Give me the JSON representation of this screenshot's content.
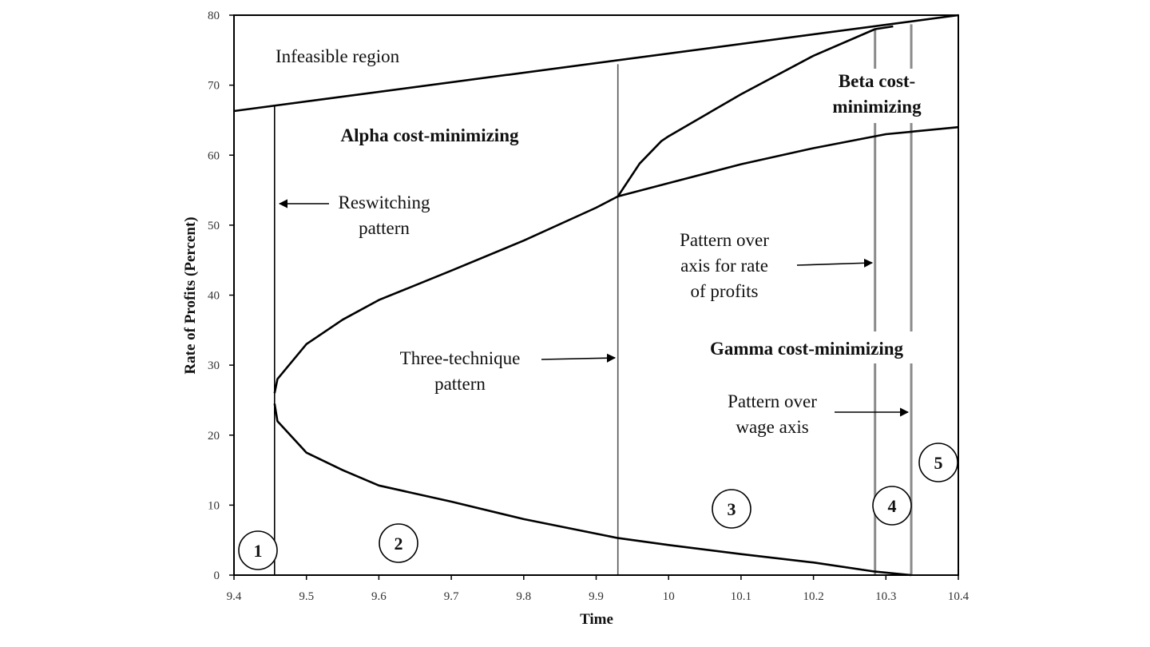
{
  "chart_data": {
    "type": "line",
    "xlabel": "Time",
    "ylabel": "Rate of Profits (Percent)",
    "xlim": [
      9.4,
      10.4
    ],
    "ylim": [
      0,
      80
    ],
    "x_ticks": [
      "9.4",
      "9.5",
      "9.6",
      "9.7",
      "9.8",
      "9.9",
      "10",
      "10.1",
      "10.2",
      "10.3",
      "10.4"
    ],
    "y_ticks": [
      "0",
      "10",
      "20",
      "30",
      "40",
      "50",
      "60",
      "70",
      "80"
    ],
    "grid": false,
    "legend": "none",
    "series": [
      {
        "points": [
          [
            9.4,
            66.3
          ],
          [
            10.4,
            80.0
          ]
        ]
      },
      {
        "points": [
          [
            9.456,
            26.0
          ],
          [
            9.46,
            28.0
          ],
          [
            9.5,
            33.0
          ],
          [
            9.55,
            36.5
          ],
          [
            9.6,
            39.3
          ],
          [
            9.7,
            43.5
          ],
          [
            9.8,
            47.8
          ],
          [
            9.9,
            52.5
          ],
          [
            9.93,
            54.1
          ],
          [
            10.0,
            56.0
          ],
          [
            10.1,
            58.7
          ],
          [
            10.2,
            61.0
          ],
          [
            10.3,
            63.0
          ],
          [
            10.4,
            64.0
          ]
        ]
      },
      {
        "points": [
          [
            9.456,
            24.5
          ],
          [
            9.46,
            22.0
          ],
          [
            9.5,
            17.5
          ],
          [
            9.55,
            15.0
          ],
          [
            9.6,
            12.8
          ],
          [
            9.7,
            10.5
          ],
          [
            9.8,
            8.0
          ],
          [
            9.93,
            5.3
          ],
          [
            10.0,
            4.3
          ],
          [
            10.1,
            3.0
          ],
          [
            10.2,
            1.8
          ],
          [
            10.285,
            0.5
          ],
          [
            10.335,
            0.0
          ]
        ]
      },
      {
        "points": [
          [
            9.93,
            54.1
          ],
          [
            9.96,
            58.8
          ],
          [
            9.99,
            62.0
          ],
          [
            10.0,
            62.7
          ],
          [
            10.1,
            68.7
          ],
          [
            10.2,
            74.2
          ],
          [
            10.285,
            78.0
          ],
          [
            10.31,
            78.4
          ]
        ]
      }
    ],
    "verticals": [
      {
        "x": 9.456,
        "y_from": 0,
        "y_to": 67.0
      },
      {
        "x": 9.93,
        "y_from": 0,
        "y_to": 73.0
      },
      {
        "x": 10.285,
        "y_from": 0,
        "y_to": 78.0
      },
      {
        "x": 10.335,
        "y_from": 0,
        "y_to": 78.7
      }
    ],
    "annotations": {
      "infeasible": "Infeasible region",
      "alpha": "Alpha cost-minimizing",
      "beta_line1": "Beta cost-",
      "beta_line2": "minimizing",
      "gamma": "Gamma cost-minimizing",
      "reswitching_line1": "Reswitching",
      "reswitching_line2": "pattern",
      "three_line1": "Three-technique",
      "three_line2": "pattern",
      "rate_line1": "Pattern over",
      "rate_line2": "axis for rate",
      "rate_line3": "of profits",
      "wage_line1": "Pattern over",
      "wage_line2": "wage axis"
    },
    "region_numbers": [
      "1",
      "2",
      "3",
      "4",
      "5"
    ]
  }
}
